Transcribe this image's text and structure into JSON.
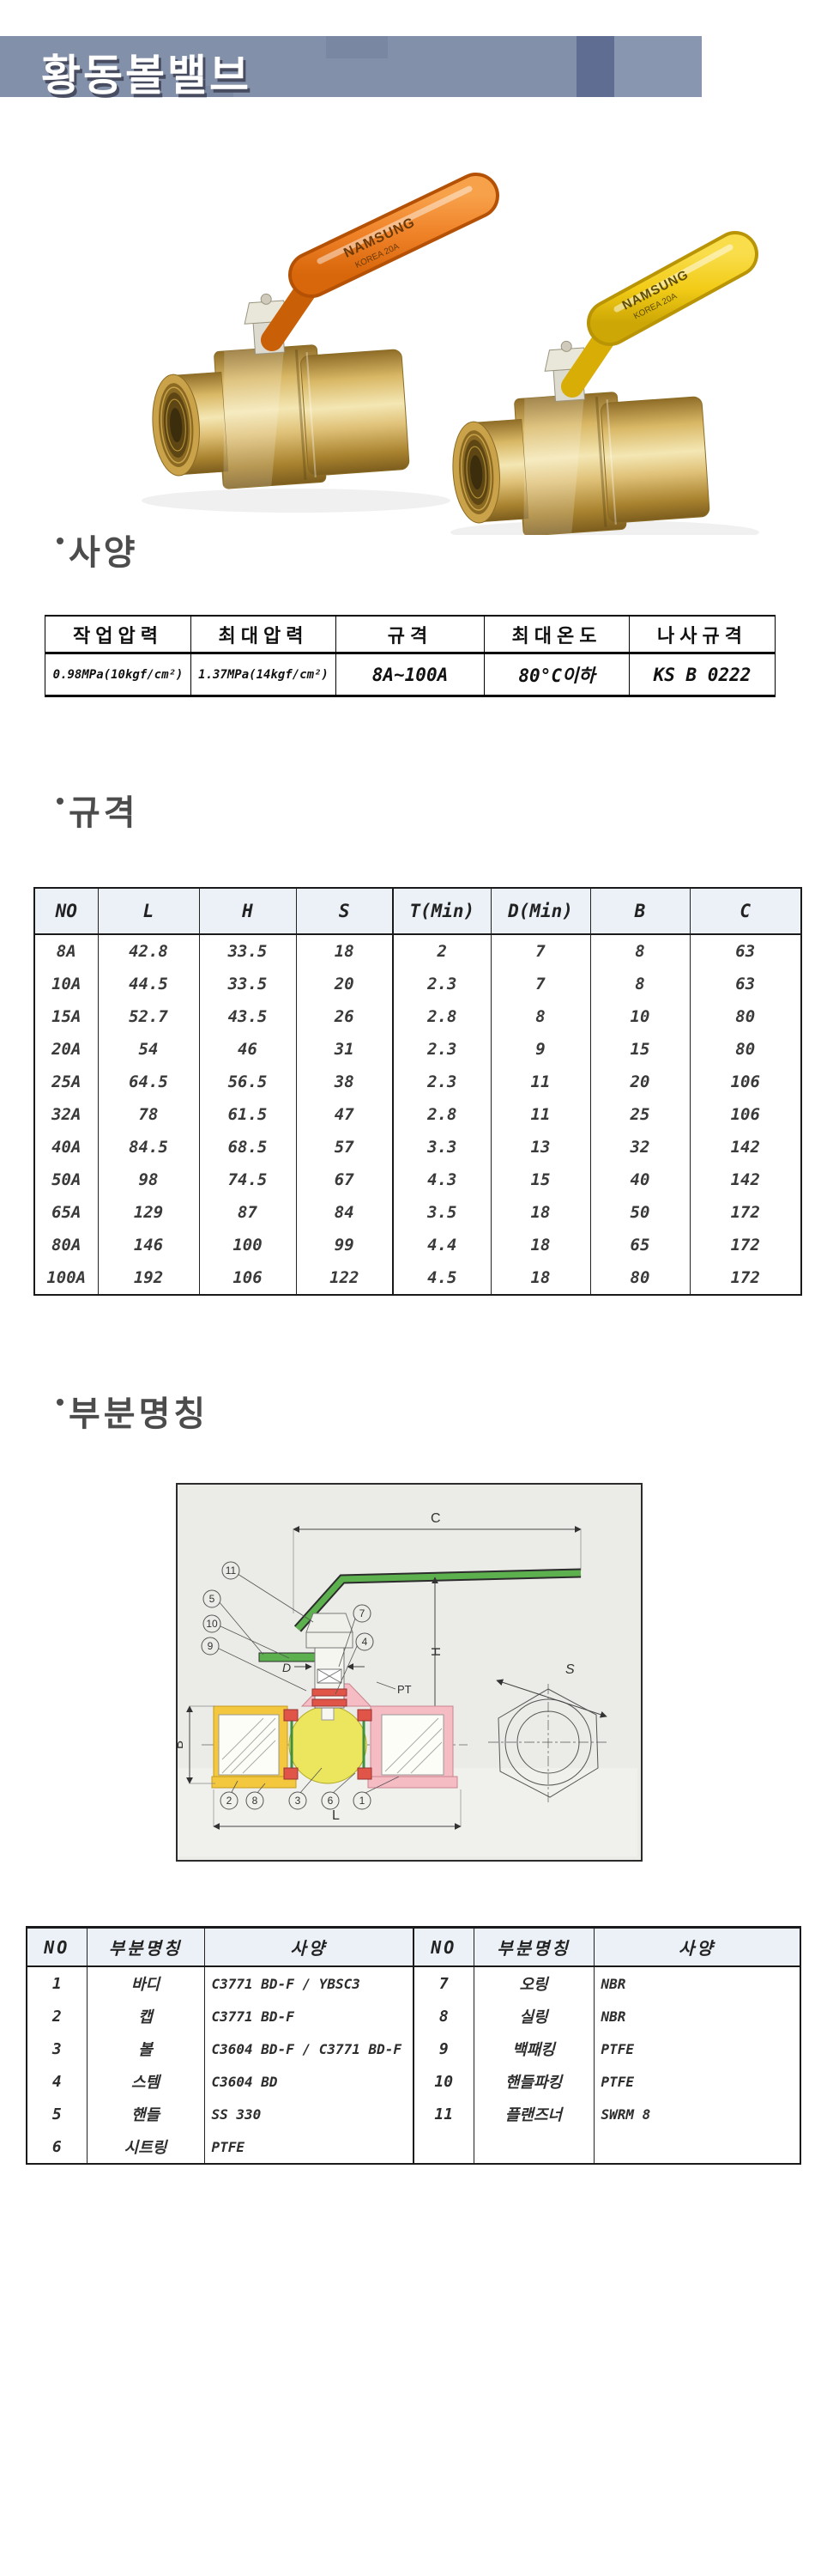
{
  "banner": {
    "title": "황동볼밸브"
  },
  "product": {
    "brand_line1": "NAMSUNG",
    "brand_line2": "KOREA 20A"
  },
  "sections": {
    "spec": "사양",
    "dimensions": "규격",
    "parts": "부분명칭"
  },
  "spec_table": {
    "headers": [
      "작업압력",
      "최대압력",
      "규격",
      "최대온도",
      "나사규격"
    ],
    "rows": [
      [
        "0.98MPa(10kgf/cm²)",
        "1.37MPa(14kgf/cm²)",
        "8A~100A",
        "80°C이하",
        "KS B 0222"
      ]
    ]
  },
  "dim_table": {
    "headers": [
      "NO",
      "L",
      "H",
      "S",
      "T(Min)",
      "D(Min)",
      "B",
      "C"
    ],
    "rows": [
      [
        "8A",
        "42.8",
        "33.5",
        "18",
        "2",
        "7",
        "8",
        "63"
      ],
      [
        "10A",
        "44.5",
        "33.5",
        "20",
        "2.3",
        "7",
        "8",
        "63"
      ],
      [
        "15A",
        "52.7",
        "43.5",
        "26",
        "2.8",
        "8",
        "10",
        "80"
      ],
      [
        "20A",
        "54",
        "46",
        "31",
        "2.3",
        "9",
        "15",
        "80"
      ],
      [
        "25A",
        "64.5",
        "56.5",
        "38",
        "2.3",
        "11",
        "20",
        "106"
      ],
      [
        "32A",
        "78",
        "61.5",
        "47",
        "2.8",
        "11",
        "25",
        "106"
      ],
      [
        "40A",
        "84.5",
        "68.5",
        "57",
        "3.3",
        "13",
        "32",
        "142"
      ],
      [
        "50A",
        "98",
        "74.5",
        "67",
        "4.3",
        "15",
        "40",
        "142"
      ],
      [
        "65A",
        "129",
        "87",
        "84",
        "3.5",
        "18",
        "50",
        "172"
      ],
      [
        "80A",
        "146",
        "100",
        "99",
        "4.4",
        "18",
        "65",
        "172"
      ],
      [
        "100A",
        "192",
        "106",
        "122",
        "4.5",
        "18",
        "80",
        "172"
      ]
    ]
  },
  "parts_table": {
    "headers": [
      "NO",
      "부분명칭",
      "사양",
      "NO",
      "부분명칭",
      "사양"
    ],
    "rows": [
      [
        "1",
        "바디",
        "C3771 BD-F / YBSC3",
        "7",
        "오링",
        "NBR"
      ],
      [
        "2",
        "캡",
        "C3771 BD-F",
        "8",
        "실링",
        "NBR"
      ],
      [
        "3",
        "볼",
        "C3604 BD-F / C3771 BD-F",
        "9",
        "백패킹",
        "PTFE"
      ],
      [
        "4",
        "스템",
        "C3604 BD",
        "10",
        "핸들파킹",
        "PTFE"
      ],
      [
        "5",
        "핸들",
        "SS 330",
        "11",
        "플랜즈너",
        "SWRM 8"
      ],
      [
        "6",
        "시트링",
        "PTFE",
        "",
        "",
        ""
      ]
    ]
  },
  "diagram": {
    "labels": {
      "c": "C",
      "h": "H",
      "s": "S",
      "b": "B",
      "l": "L",
      "d": "D",
      "pt": "PT"
    },
    "callouts": [
      "1",
      "2",
      "3",
      "4",
      "5",
      "6",
      "7",
      "8",
      "9",
      "10",
      "11"
    ]
  },
  "colors": {
    "banner-bg": "#8290aa",
    "banner-dark": "#5e6d91",
    "banner-accent": "#75829e",
    "table-header-bg": "#ecf1f7",
    "handle-orange": "#ef8127",
    "handle-yellow": "#f2cc17",
    "brass": "#d9b866",
    "heading": "#4c4c4c"
  }
}
